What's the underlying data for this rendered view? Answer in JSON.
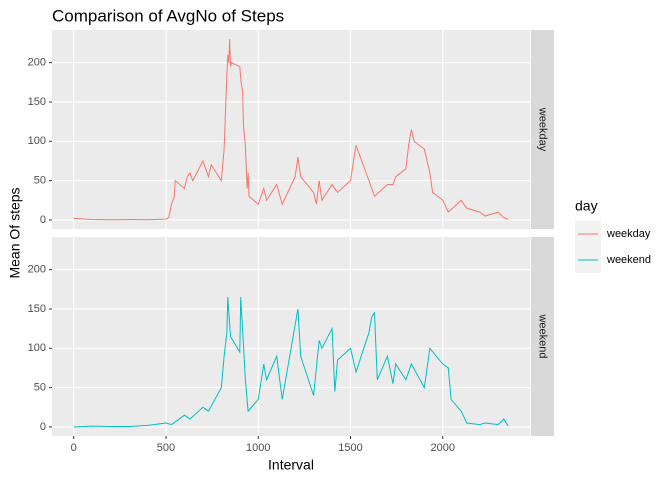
{
  "chart_data": {
    "type": "line",
    "title": "Comparison of AvgNo of Steps",
    "x_label": "Interval",
    "y_label": "Mean Of steps",
    "legend_title": "day",
    "xlim": [
      -117.75,
      2472.75
    ],
    "xticks": [
      0,
      500,
      1000,
      1500,
      2000
    ],
    "ylim": [
      -11.5,
      241.5
    ],
    "yticks": [
      0,
      50,
      100,
      150,
      200
    ],
    "grid": true,
    "facet": true,
    "series": [
      {
        "name": "weekday",
        "color": "#F8766D",
        "x": [
          0,
          100,
          200,
          300,
          400,
          500,
          515,
          530,
          545,
          550,
          600,
          615,
          630,
          645,
          700,
          715,
          730,
          745,
          800,
          815,
          830,
          835,
          840,
          845,
          850,
          855,
          900,
          905,
          910,
          915,
          920,
          930,
          940,
          945,
          950,
          1000,
          1030,
          1045,
          1100,
          1130,
          1200,
          1215,
          1230,
          1300,
          1315,
          1330,
          1345,
          1400,
          1430,
          1500,
          1530,
          1545,
          1600,
          1630,
          1700,
          1730,
          1745,
          1800,
          1815,
          1830,
          1845,
          1900,
          1930,
          1945,
          2000,
          2030,
          2100,
          2130,
          2200,
          2230,
          2300,
          2330,
          2355
        ],
        "values": [
          2,
          0.5,
          0.3,
          0.5,
          0.2,
          1,
          3,
          20,
          30,
          50,
          40,
          55,
          60,
          50,
          75,
          65,
          55,
          70,
          50,
          90,
          185,
          210,
          200,
          230,
          195,
          200,
          195,
          180,
          170,
          165,
          120,
          95,
          40,
          60,
          30,
          20,
          40,
          25,
          45,
          20,
          55,
          80,
          55,
          35,
          20,
          50,
          25,
          45,
          35,
          50,
          95,
          85,
          50,
          30,
          45,
          45,
          55,
          65,
          95,
          115,
          100,
          90,
          60,
          35,
          25,
          10,
          25,
          15,
          10,
          5,
          10,
          3,
          1
        ]
      },
      {
        "name": "weekend",
        "color": "#00BFC4",
        "x": [
          0,
          100,
          200,
          300,
          400,
          500,
          530,
          600,
          630,
          700,
          730,
          800,
          815,
          830,
          835,
          845,
          850,
          900,
          905,
          915,
          930,
          945,
          1000,
          1030,
          1045,
          1100,
          1130,
          1200,
          1215,
          1230,
          1300,
          1330,
          1345,
          1400,
          1415,
          1430,
          1500,
          1530,
          1600,
          1615,
          1630,
          1645,
          1700,
          1730,
          1745,
          1800,
          1830,
          1900,
          1930,
          2000,
          2030,
          2045,
          2100,
          2130,
          2200,
          2230,
          2300,
          2330,
          2355
        ],
        "values": [
          0,
          1,
          0.5,
          0.5,
          2,
          5,
          3,
          15,
          10,
          25,
          20,
          50,
          90,
          120,
          165,
          130,
          115,
          95,
          165,
          125,
          60,
          20,
          35,
          80,
          60,
          90,
          35,
          130,
          150,
          90,
          40,
          110,
          100,
          125,
          45,
          85,
          100,
          70,
          120,
          140,
          145,
          60,
          90,
          55,
          80,
          60,
          80,
          50,
          100,
          80,
          75,
          35,
          20,
          5,
          3,
          5,
          3,
          10,
          1
        ]
      }
    ]
  }
}
